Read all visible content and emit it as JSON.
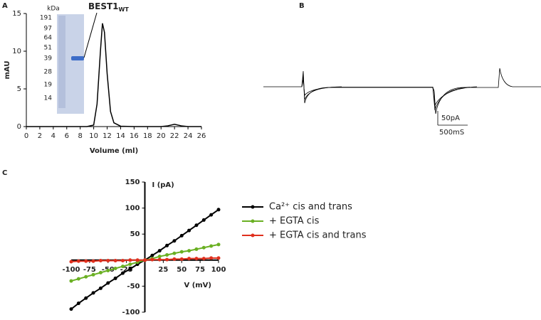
{
  "panel_b": {
    "label": "B",
    "scale_current": "50pA",
    "scale_time": "500mS"
  },
  "chart_data": [
    {
      "type": "line",
      "panel_label": "A",
      "y_label": "mAU",
      "x_label": "Volume (ml)",
      "x": [
        0,
        2,
        4,
        6,
        8,
        9,
        10,
        10.5,
        11,
        11.3,
        11.6,
        12,
        12.5,
        13,
        14,
        16,
        18,
        20,
        21,
        22,
        23,
        24,
        26
      ],
      "series": [
        {
          "color": "#000000",
          "values": [
            0,
            0,
            0,
            0,
            0,
            0,
            0.2,
            3,
            10,
            13.7,
            12.5,
            7,
            2,
            0.5,
            0.05,
            0,
            0,
            0,
            0.1,
            0.3,
            0.1,
            0,
            0
          ]
        }
      ],
      "xlim": [
        0,
        26
      ],
      "xticks": [
        0,
        2,
        4,
        6,
        8,
        10,
        12,
        14,
        16,
        18,
        20,
        22,
        24,
        26
      ],
      "ylim": [
        0,
        15
      ],
      "yticks": [
        0,
        5,
        10,
        15
      ],
      "annotation": {
        "text": "BEST1",
        "subscript": "WT"
      },
      "gel_unit": "kDa",
      "gel_markers": [
        "191",
        "97",
        "64",
        "51",
        "39",
        "28",
        "19",
        "14"
      ]
    },
    {
      "type": "line",
      "panel_label": "C",
      "y_label": "I (pA)",
      "x_label": "V (mV)",
      "x": [
        -100,
        -90,
        -80,
        -70,
        -60,
        -50,
        -40,
        -30,
        -20,
        -10,
        0,
        10,
        20,
        30,
        40,
        50,
        60,
        70,
        80,
        90,
        100
      ],
      "series": [
        {
          "name": "Ca²⁺ cis and trans",
          "color": "#000000",
          "values": [
            -94,
            -83,
            -73,
            -63,
            -54,
            -44,
            -35,
            -25,
            -17,
            -8,
            0,
            9,
            18,
            28,
            37,
            47,
            57,
            67,
            77,
            87,
            97
          ]
        },
        {
          "name": "+ EGTA cis",
          "color": "#6ab023",
          "values": [
            -40,
            -36,
            -32,
            -28,
            -24,
            -20,
            -16,
            -12,
            -8,
            -4,
            0,
            3,
            7,
            10,
            13,
            16,
            18,
            21,
            24,
            27,
            30
          ]
        },
        {
          "name": "+ EGTA cis and trans",
          "color": "#e0301e",
          "values": [
            -3,
            -2,
            -2,
            -2,
            -1,
            -1,
            -1,
            -1,
            0,
            0,
            0,
            1,
            1,
            1,
            2,
            2,
            3,
            3,
            3,
            4,
            4
          ]
        }
      ],
      "xlim": [
        -100,
        100
      ],
      "xticks": [
        -100,
        -75,
        -50,
        -25,
        25,
        50,
        75,
        100
      ],
      "ylim": [
        -100,
        150
      ],
      "yticks": [
        -100,
        -50,
        50,
        100,
        150
      ]
    }
  ]
}
